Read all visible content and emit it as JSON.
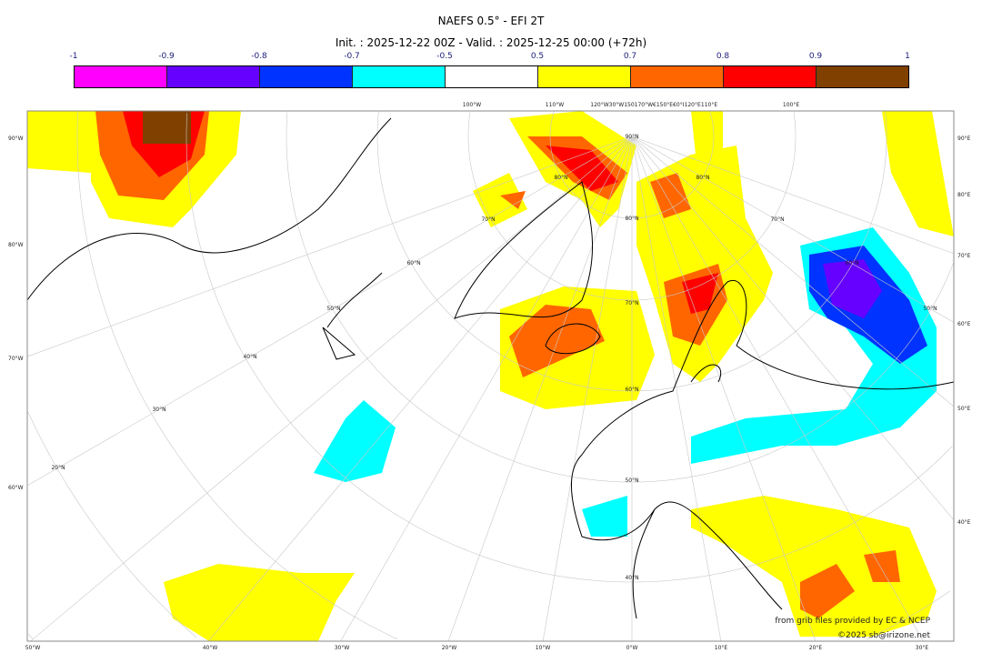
{
  "title": "NAEFS 0.5° - EFI 2T",
  "subtitle": "Init. : 2025-12-22 00Z - Valid. : 2025-12-25 00:00 (+72h)",
  "colorbar": {
    "ticks": [
      "-1",
      "-0.9",
      "-0.8",
      "-0.7",
      "-0.5",
      "0.5",
      "0.7",
      "0.8",
      "0.9",
      "1"
    ],
    "colors": [
      "#ff00ff",
      "#6600ff",
      "#0033ff",
      "#00ffff",
      "#ffffff",
      "#ffff00",
      "#ff6600",
      "#ff0000",
      "#804000"
    ]
  },
  "map": {
    "left_labels": [
      "90°W",
      "80°W",
      "70°W",
      "60°W"
    ],
    "right_labels": [
      "90°E",
      "80°E",
      "70°E",
      "60°E",
      "50°E",
      "40°E"
    ],
    "bottom_labels": [
      "50°W",
      "40°W",
      "30°W",
      "20°W",
      "10°W",
      "0°W",
      "10°E",
      "20°E",
      "30°E"
    ],
    "top_labels": [
      "100°W",
      "110°W",
      "120°W30°W150170°W€150°E€0°I120°E",
      "110°E",
      "100°E"
    ],
    "lat_labels": [
      "90°N",
      "80°N",
      "70°N",
      "60°N",
      "50°N",
      "40°N",
      "30°N",
      "20°N",
      "80°N",
      "70°N",
      "60°N",
      "50°N",
      "40°N",
      "80°N",
      "70°N",
      "60°N",
      "50°N"
    ]
  },
  "credits": {
    "source": "from grib files provided by EC & NCEP",
    "copyright": "©2025 sb@irizone.net"
  }
}
